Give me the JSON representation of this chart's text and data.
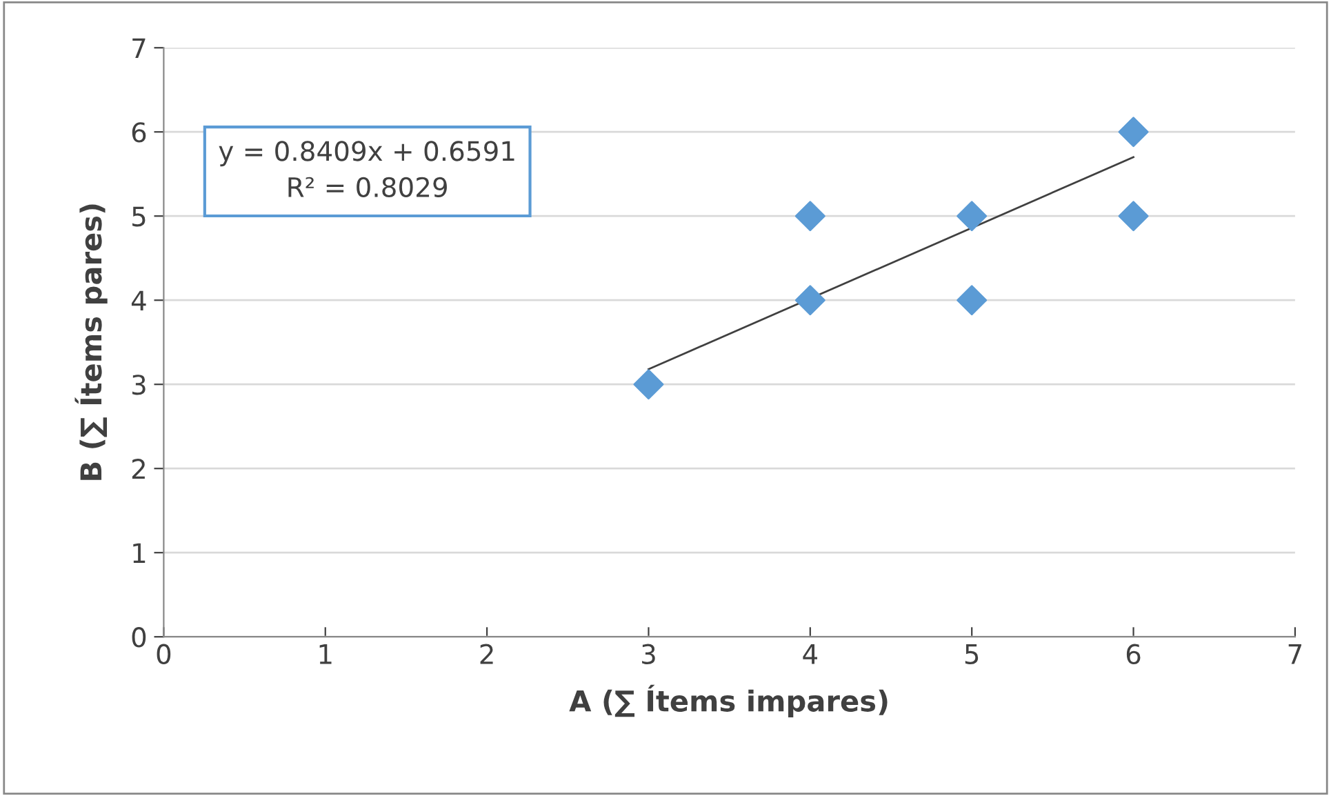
{
  "chart_data": {
    "type": "scatter",
    "xlabel": "A (∑ Ítems impares)",
    "ylabel": "B (∑ Ítems pares)",
    "xlim": [
      0,
      7
    ],
    "ylim": [
      0,
      7
    ],
    "xticks": [
      0,
      1,
      2,
      3,
      4,
      5,
      6,
      7
    ],
    "yticks": [
      0,
      1,
      2,
      3,
      4,
      5,
      6,
      7
    ],
    "grid": "y",
    "series": [
      {
        "marker": "diamond",
        "color": "#5b9bd5",
        "x": [
          3,
          4,
          4,
          5,
          5,
          6,
          6
        ],
        "values": [
          3,
          4,
          5,
          5,
          4,
          6,
          5
        ]
      },
      {
        "type": "line",
        "marker": "none",
        "color": "#404040",
        "line_style": "solid",
        "x": [
          3,
          6
        ],
        "values": [
          3.18,
          5.7
        ]
      }
    ],
    "annotations": [
      "y = 0.8409x + 0.6591\nR² = 0.8029"
    ]
  }
}
